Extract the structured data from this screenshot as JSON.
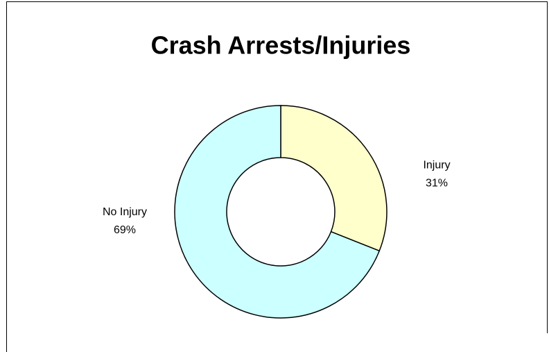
{
  "chart_data": {
    "type": "donut",
    "title": "Crash Arrests/Injuries",
    "categories": [
      "Injury",
      "No Injury"
    ],
    "values": [
      31,
      69
    ],
    "value_labels": [
      "31%",
      "69%"
    ],
    "colors": [
      "#ffffcc",
      "#ccffff"
    ]
  }
}
